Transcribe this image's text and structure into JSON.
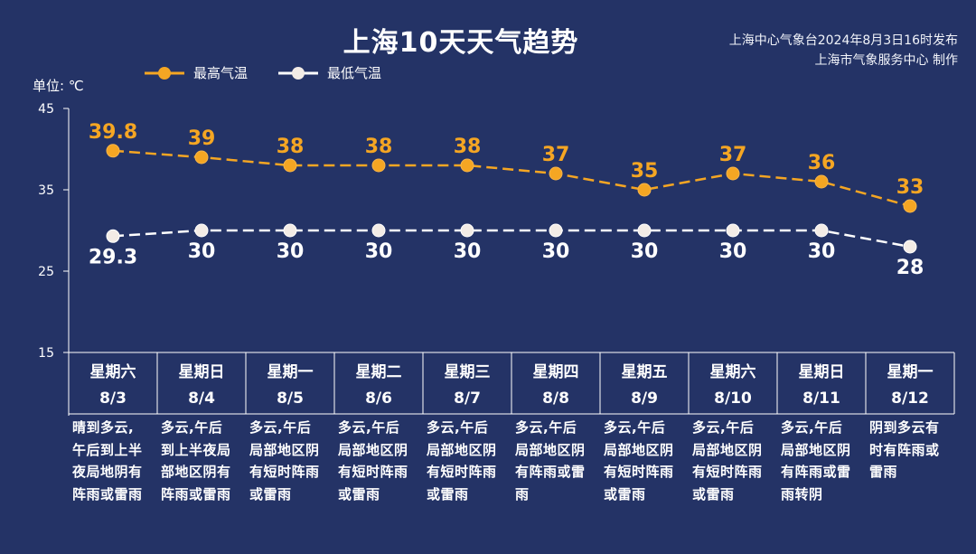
{
  "header": {
    "title": "上海10天天气趋势",
    "source_line1": "上海中心气象台2024年8月3日16时发布",
    "source_line2": "上海市气象服务中心 制作"
  },
  "chart_data": {
    "type": "line",
    "unit_label": "单位: ℃",
    "ylim": [
      15,
      45
    ],
    "yticks": [
      "45",
      "35",
      "25",
      "15"
    ],
    "categories": [
      "8/3",
      "8/4",
      "8/5",
      "8/6",
      "8/7",
      "8/8",
      "8/9",
      "8/10",
      "8/11",
      "8/12"
    ],
    "weekdays": [
      "星期六",
      "星期日",
      "星期一",
      "星期二",
      "星期三",
      "星期四",
      "星期五",
      "星期六",
      "星期日",
      "星期一"
    ],
    "series": [
      {
        "name": "最高气温",
        "color": "#f5a623",
        "values": [
          39.8,
          39,
          38,
          38,
          38,
          37,
          35,
          37,
          36,
          33
        ],
        "labels": [
          "39.8",
          "39",
          "38",
          "38",
          "38",
          "37",
          "35",
          "37",
          "36",
          "33"
        ]
      },
      {
        "name": "最低气温",
        "color": "#ffffff",
        "values": [
          29.3,
          30,
          30,
          30,
          30,
          30,
          30,
          30,
          30,
          28
        ],
        "labels": [
          "29.3",
          "30",
          "30",
          "30",
          "30",
          "30",
          "30",
          "30",
          "30",
          "28"
        ]
      }
    ],
    "grid": false,
    "legend_position": "top-left",
    "descriptions": [
      [
        "晴到多云,",
        "午后到上半",
        "夜局地阴有",
        "阵雨或雷雨"
      ],
      [
        "多云,午后",
        "到上半夜局",
        "部地区阴有",
        "阵雨或雷雨"
      ],
      [
        "多云,午后",
        "局部地区阴",
        "有短时阵雨",
        "或雷雨"
      ],
      [
        "多云,午后",
        "局部地区阴",
        "有短时阵雨",
        "或雷雨"
      ],
      [
        "多云,午后",
        "局部地区阴",
        "有短时阵雨",
        "或雷雨"
      ],
      [
        "多云,午后",
        "局部地区阴",
        "有阵雨或雷",
        "雨"
      ],
      [
        "多云,午后",
        "局部地区阴",
        "有短时阵雨",
        "或雷雨"
      ],
      [
        "多云,午后",
        "局部地区阴",
        "有短时阵雨",
        "或雷雨"
      ],
      [
        "多云,午后",
        "局部地区阴",
        "有阵雨或雷",
        "雨转阴"
      ],
      [
        "阴到多云有",
        "时有阵雨或",
        "雷雨"
      ]
    ]
  }
}
